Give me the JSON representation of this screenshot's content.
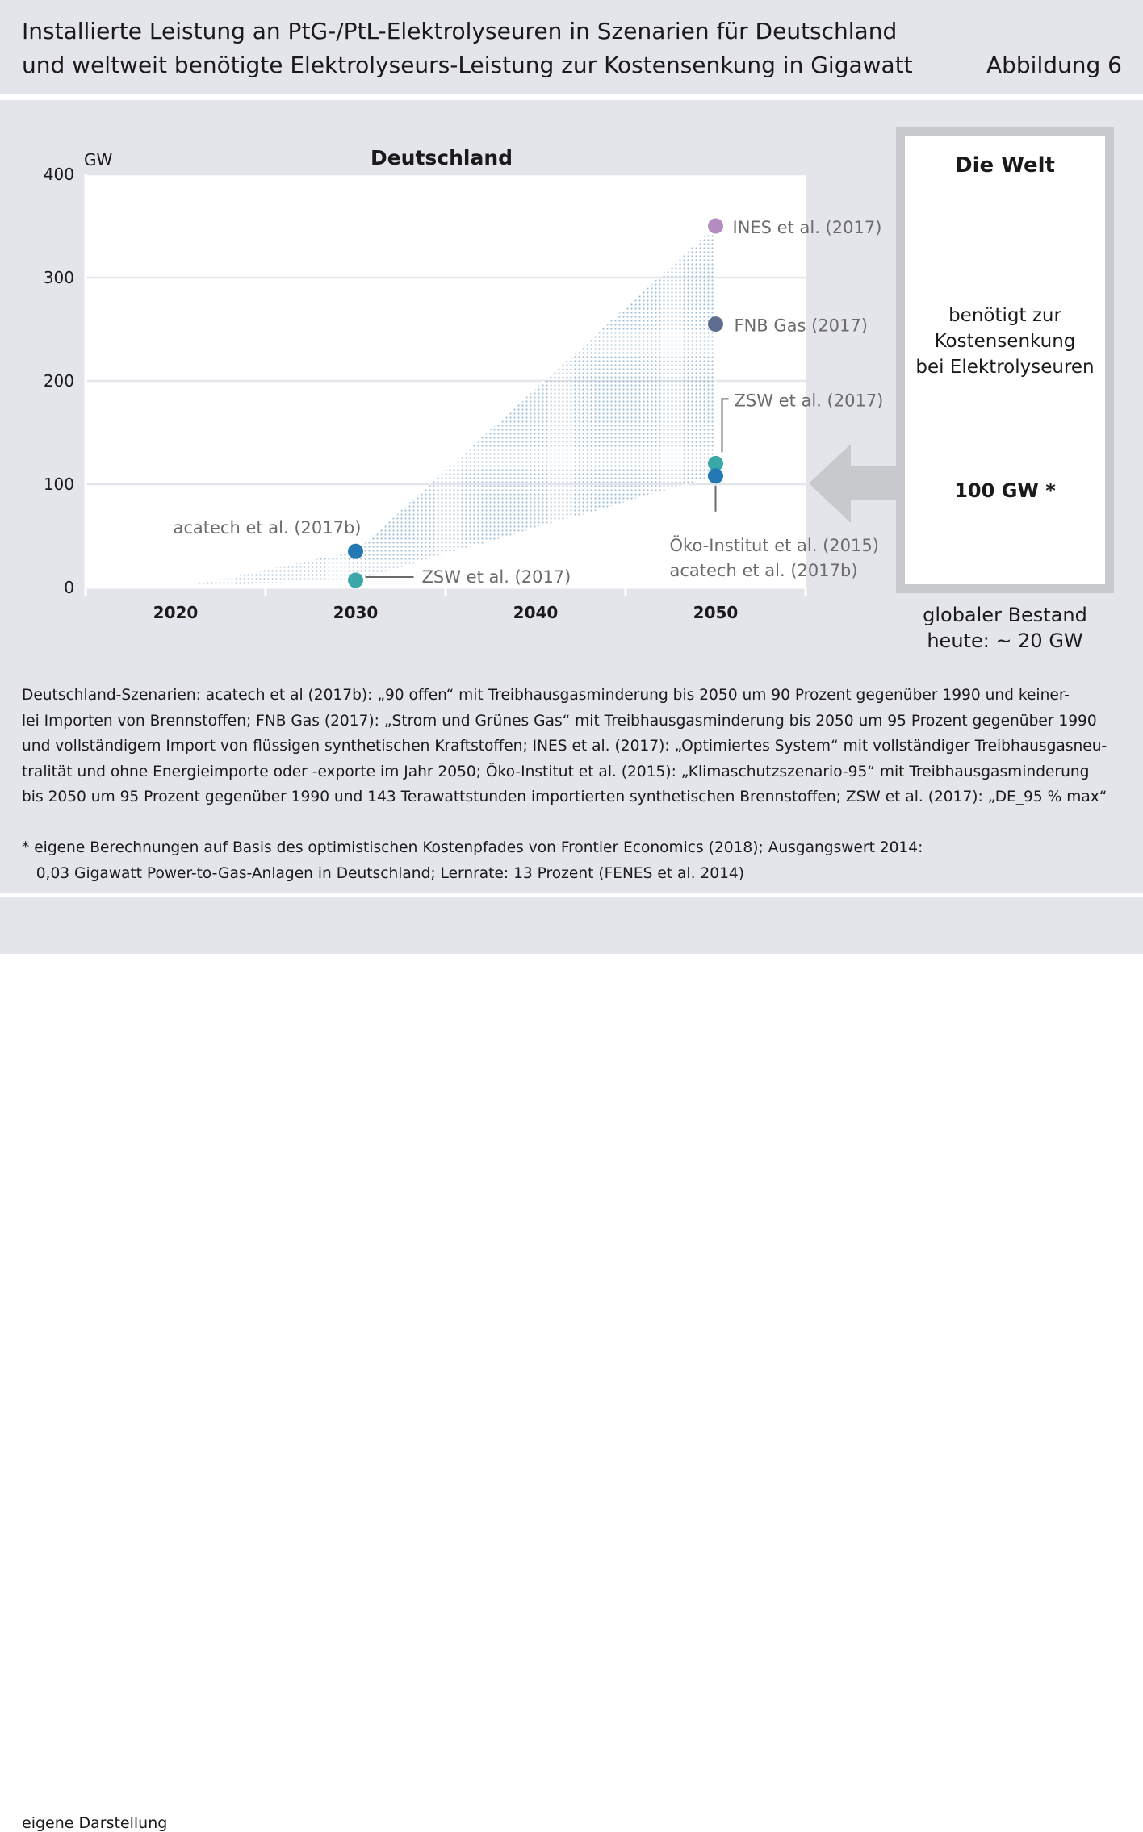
{
  "header": {
    "title_line1": "Installierte Leistung an PtG-/PtL-Elektrolyseuren in Szenarien für Deutschland",
    "title_line2": "und weltweit benötigte Elektrolyseurs-Leistung zur Kostensenkung in Gigawatt",
    "figure_label": "Abbildung 6"
  },
  "chart_data": {
    "type": "scatter",
    "title": "Deutschland",
    "ylabel": "GW",
    "xlabel": "",
    "xlim": [
      2015,
      2055
    ],
    "ylim": [
      0,
      400
    ],
    "x_ticks": [
      2020,
      2030,
      2040,
      2050
    ],
    "y_ticks": [
      0,
      100,
      200,
      300,
      400
    ],
    "grid": "horizontal",
    "range_band": {
      "lower": [
        {
          "x": 2020,
          "y": 0
        },
        {
          "x": 2030,
          "y": 7
        },
        {
          "x": 2050,
          "y": 108
        }
      ],
      "upper": [
        {
          "x": 2020,
          "y": 0
        },
        {
          "x": 2030,
          "y": 35
        },
        {
          "x": 2050,
          "y": 350
        }
      ]
    },
    "points": [
      {
        "label": "INES et al. (2017)",
        "x": 2050,
        "y": 350,
        "color": "#b48cbf"
      },
      {
        "label": "FNB Gas (2017)",
        "x": 2050,
        "y": 255,
        "color": "#5f6e8f"
      },
      {
        "label": "ZSW et al. (2017)",
        "x": 2050,
        "y": 120,
        "color": "#3aa8a8"
      },
      {
        "label": "Öko-Institut et al. (2015)",
        "x": 2050,
        "y": 108,
        "color": "#2379b4"
      },
      {
        "label": "acatech et al. (2017b)",
        "x": 2050,
        "y": 108,
        "color": "#2379b4"
      },
      {
        "label": "acatech et al. (2017b)",
        "x": 2030,
        "y": 35,
        "color": "#2379b4"
      },
      {
        "label": "ZSW et al. (2017)",
        "x": 2030,
        "y": 7,
        "color": "#3aa8a8"
      }
    ]
  },
  "world": {
    "title": "Die Welt",
    "desc_lines": [
      "benötigt zur",
      "Kostensenkung",
      "bei Elektrolyseuren"
    ],
    "value": "100 GW *",
    "stock_lines": [
      "globaler Bestand",
      "heute: ~ 20 GW"
    ]
  },
  "notes": {
    "lines": [
      "Deutschland-Szenarien: acatech et al (2017b): „90 offen“ mit Treibhausgasminderung bis 2050 um 90 Prozent gegenüber 1990 und keiner-",
      "lei Importen von Brennstoffen; FNB Gas (2017): „Strom und Grünes Gas“ mit Treibhausgasminderung bis 2050 um 95 Prozent gegenüber 1990",
      "und vollständigem Import von flüssigen synthetischen Kraftstoffen; INES et al. (2017): „Optimiertes System“ mit vollständiger Treibhausgasneu-",
      "tralität und ohne Energieimporte oder -exporte im Jahr 2050; Öko-Institut et al. (2015): „Klimaschutzszenario-95“ mit Treibhausgasminderung",
      "bis 2050 um 95 Prozent gegenüber 1990 und 143 Terawattstunden importierten synthetischen Brennstoffen; ZSW et al. (2017): „DE_95 % max“"
    ],
    "footnote_lines": [
      "* eigene Berechnungen auf Basis des optimistischen Kostenpfades von Frontier Economics (2018); Ausgangswert 2014:",
      "   0,03 Gigawatt Power-to-Gas-Anlagen in Deutschland; Lernrate: 13 Prozent (FENES et al. 2014)"
    ]
  },
  "footer": {
    "source": "eigene Darstellung"
  },
  "colors": {
    "band_fill": "#b9cfe3",
    "panel_bg": "#e4e5ea",
    "arrow": "#c8c9cc",
    "label_gray": "#6b6b6b"
  }
}
